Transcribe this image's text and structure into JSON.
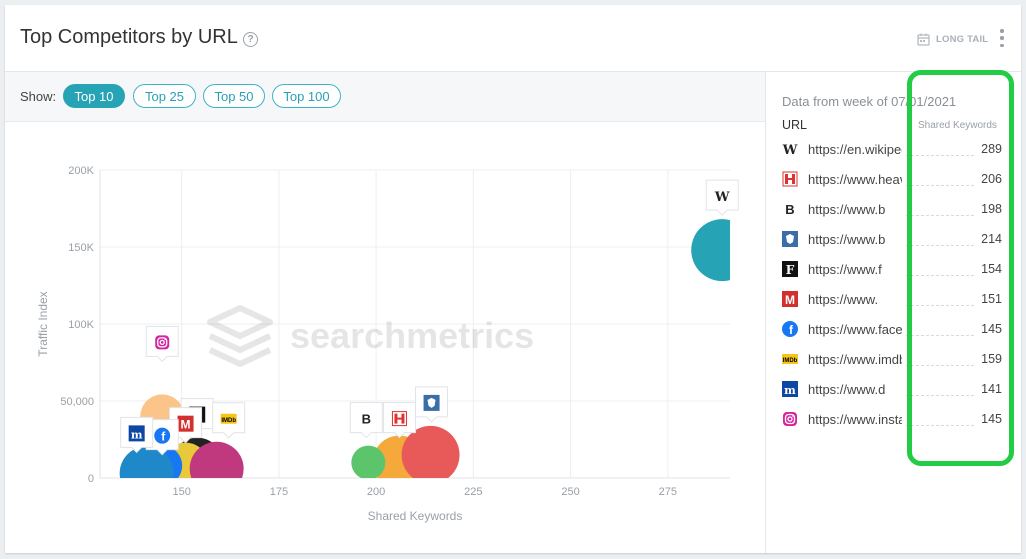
{
  "header": {
    "title": "Top Competitors by URL",
    "help_glyph": "?",
    "longtail_label": "LONG TAIL"
  },
  "show": {
    "label": "Show:",
    "options": [
      "Top 10",
      "Top 25",
      "Top 50",
      "Top 100"
    ],
    "selected": "Top 10"
  },
  "watermark": "searchmetrics",
  "colors": {
    "accent": "#27a3b6",
    "highlight": "#22cc44"
  },
  "chart_data": {
    "type": "scatter",
    "xlabel": "Shared Keywords",
    "ylabel": "Traffic Index",
    "xlim": [
      129,
      291
    ],
    "ylim": [
      0,
      200000
    ],
    "x_ticks": [
      150,
      175,
      200,
      225,
      250,
      275
    ],
    "y_ticks": [
      0,
      50000,
      100000,
      150000,
      200000
    ],
    "y_tick_labels": [
      "0",
      "50,000",
      "100K",
      "150K",
      "200K"
    ],
    "grid": true,
    "series": [
      {
        "icon": "wikipedia",
        "badge": "W",
        "x": 289,
        "y": 148000,
        "color": "#27a3b6"
      },
      {
        "icon": "heavy",
        "badge": "H",
        "x": 206,
        "y": 10000,
        "color": "#f4a93a"
      },
      {
        "icon": "b-site",
        "badge": "B",
        "x": 198,
        "y": 10000,
        "color": "#5cc46a"
      },
      {
        "icon": "crest-site",
        "badge": "✦",
        "x": 214,
        "y": 15000,
        "color": "#e85a5a"
      },
      {
        "icon": "f-site",
        "badge": "F",
        "x": 154,
        "y": 10000,
        "color": "#222222"
      },
      {
        "icon": "m-red-site",
        "badge": "M",
        "x": 151,
        "y": 8000,
        "color": "#e8c93a"
      },
      {
        "icon": "facebook",
        "badge": "f",
        "x": 145,
        "y": 8000,
        "color": "#1877f2"
      },
      {
        "icon": "imdb",
        "badge": "IMDb",
        "x": 159,
        "y": 6000,
        "color": "#c0397e"
      },
      {
        "icon": "m-blue-site",
        "badge": "M",
        "x": 141,
        "y": 3000,
        "color": "#1e88c8"
      },
      {
        "icon": "instagram",
        "badge": "◎",
        "x": 145,
        "y": 40000,
        "color": "#fbc58a"
      }
    ]
  },
  "sidebar": {
    "data_from": "Data from week of 07/01/2021",
    "col_url": "URL",
    "col_keywords": "Shared Keywords",
    "rows": [
      {
        "url": "https://en.wikipedia.org",
        "value": "289",
        "icon": "wikipedia"
      },
      {
        "url": "https://www.heavy.com",
        "value": "206",
        "icon": "heavy"
      },
      {
        "url": "https://www.b",
        "value": "198",
        "icon": "b-site"
      },
      {
        "url": "https://www.b",
        "value": "214",
        "icon": "crest-site"
      },
      {
        "url": "https://www.f",
        "value": "154",
        "icon": "f-site"
      },
      {
        "url": "https://www.",
        "value": "151",
        "icon": "m-red-site"
      },
      {
        "url": "https://www.facebook.com",
        "value": "145",
        "icon": "facebook"
      },
      {
        "url": "https://www.imdb.com",
        "value": "159",
        "icon": "imdb"
      },
      {
        "url": "https://www.d",
        "value": "141",
        "icon": "m-blue-site"
      },
      {
        "url": "https://www.instagram.com",
        "value": "145",
        "icon": "instagram"
      }
    ]
  }
}
